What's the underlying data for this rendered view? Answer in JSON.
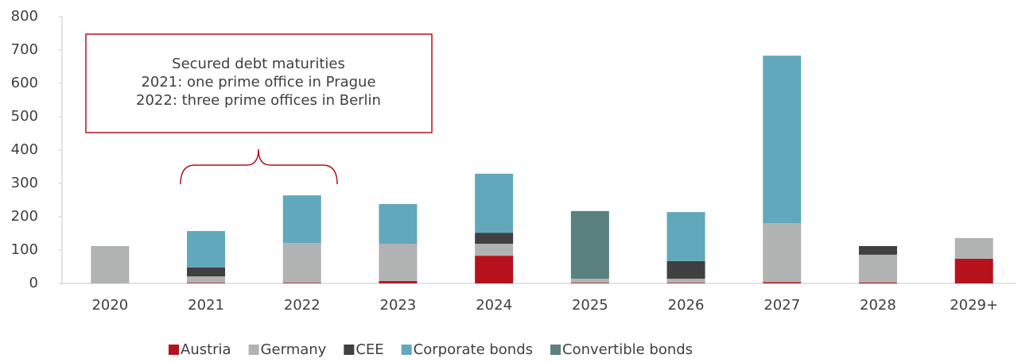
{
  "chart_data": {
    "type": "stacked_bar",
    "categories": [
      "2020",
      "2021",
      "2022",
      "2023",
      "2024",
      "2025",
      "2026",
      "2027",
      "2028",
      "2029+"
    ],
    "series": [
      {
        "name": "Austria",
        "color": "#b5121b",
        "values": [
          0,
          2,
          2,
          7,
          83,
          2,
          2,
          4,
          3,
          74
        ]
      },
      {
        "name": "Germany",
        "color": "#b0b3b2",
        "values": [
          112,
          19,
          119,
          112,
          36,
          12,
          12,
          177,
          83,
          62
        ]
      },
      {
        "name": "CEE",
        "color": "#404040",
        "values": [
          0,
          27,
          0,
          0,
          33,
          0,
          53,
          0,
          26,
          0
        ]
      },
      {
        "name": "Corporate bonds",
        "color": "#62a8bc",
        "values": [
          0,
          109,
          143,
          119,
          177,
          0,
          147,
          502,
          0,
          0
        ]
      },
      {
        "name": "Convertible bonds",
        "color": "#5a8080",
        "values": [
          0,
          0,
          0,
          0,
          0,
          203,
          0,
          0,
          0,
          0
        ]
      }
    ],
    "ylim": [
      0,
      800
    ],
    "yticks": [
      0,
      100,
      200,
      300,
      400,
      500,
      600,
      700,
      800
    ],
    "annotation": [
      "Secured debt maturities",
      "2021: one prime office in Prague",
      "2022: three prime offices in Berlin"
    ],
    "legend": "bottom"
  }
}
